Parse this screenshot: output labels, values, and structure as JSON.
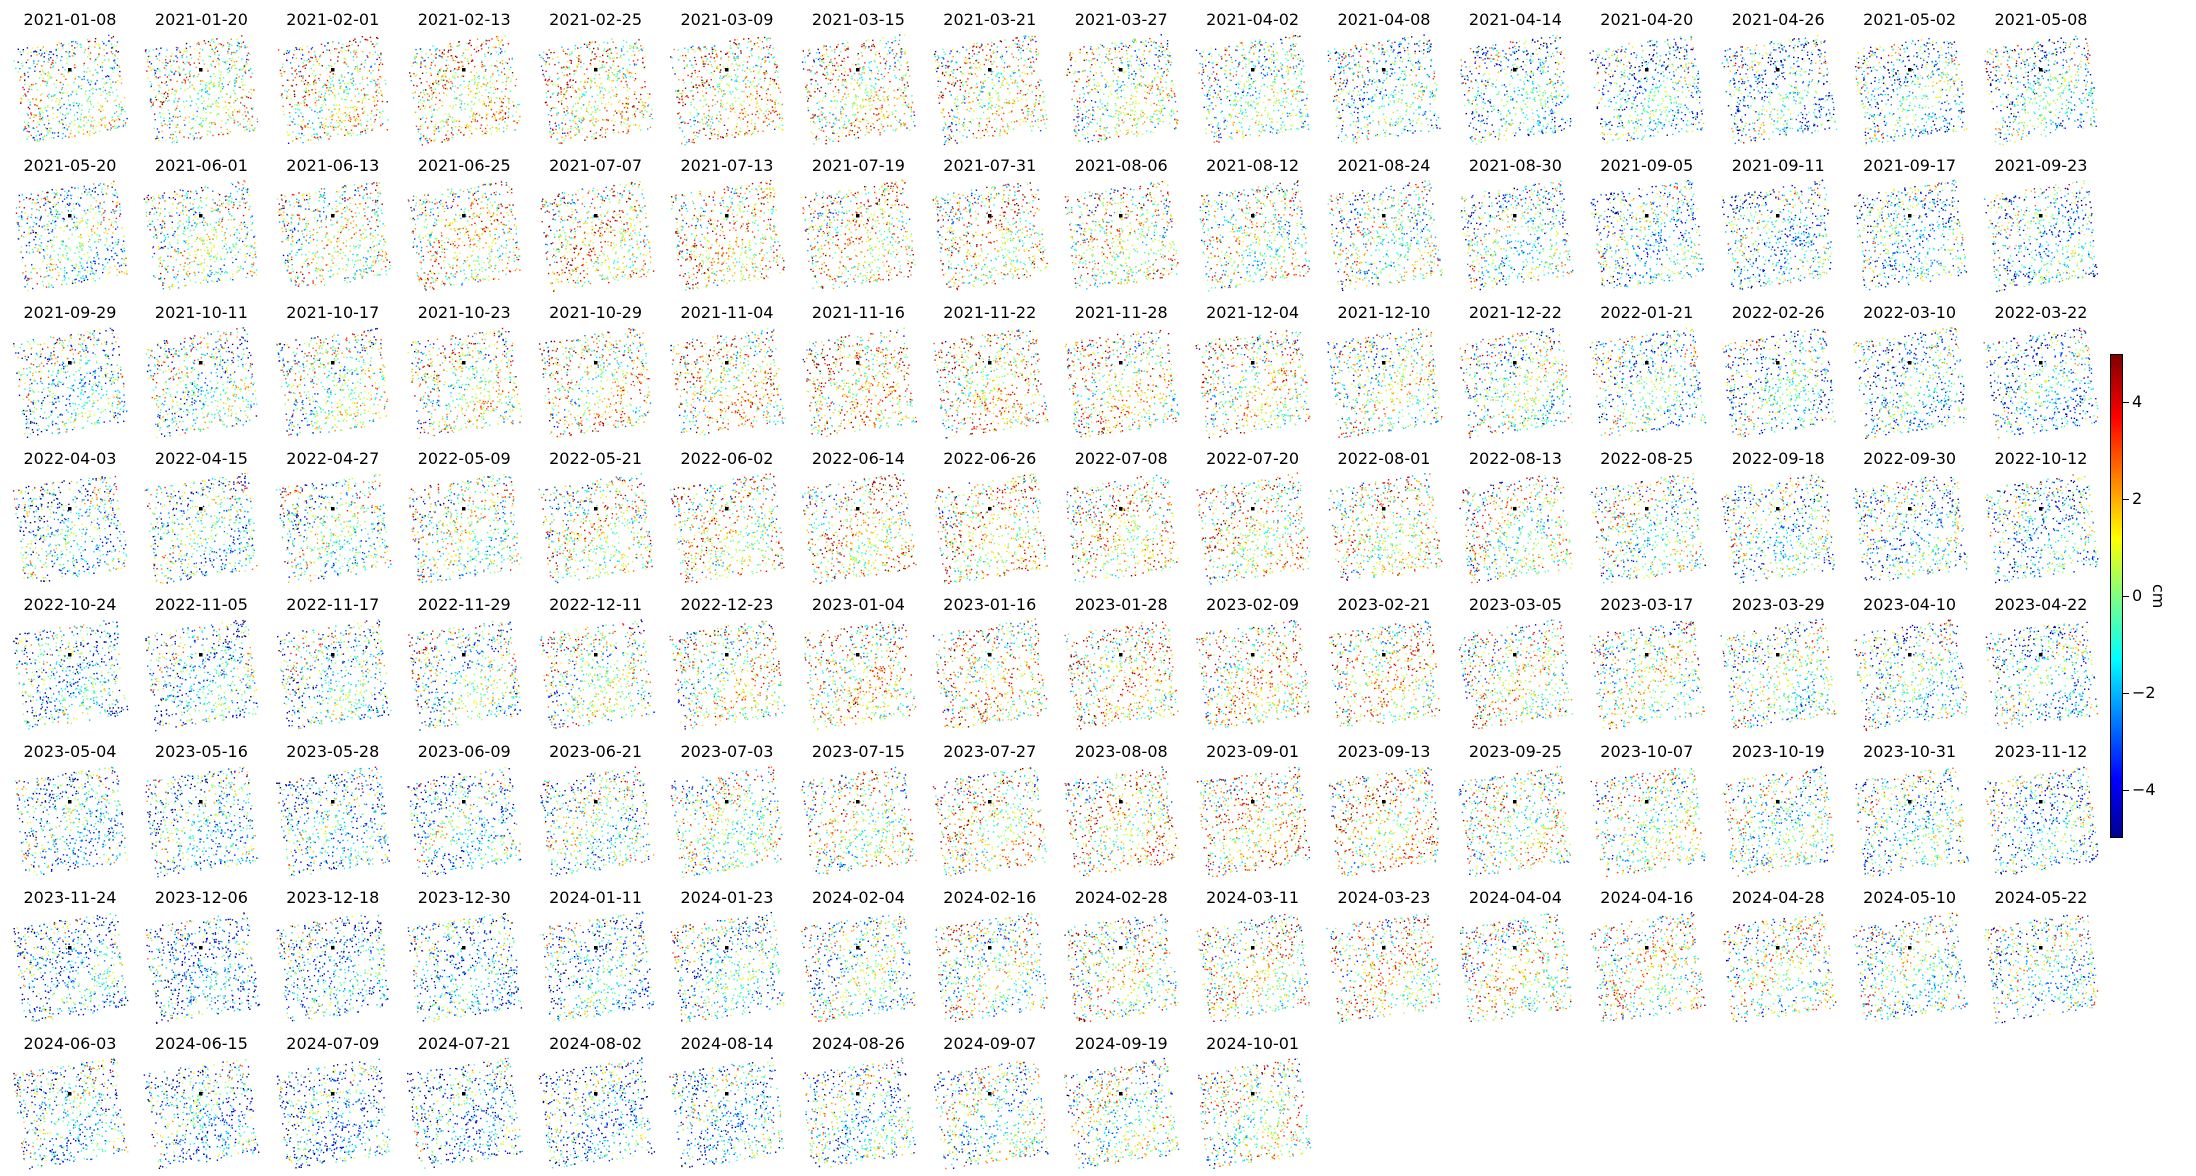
{
  "chart_data": {
    "type": "scatter",
    "description_of_layout": "small-multiples grid of point-displacement maps, one per acquisition date",
    "panels": [
      "2021-01-08",
      "2021-01-20",
      "2021-02-01",
      "2021-02-13",
      "2021-02-25",
      "2021-03-09",
      "2021-03-15",
      "2021-03-21",
      "2021-03-27",
      "2021-04-02",
      "2021-04-08",
      "2021-04-14",
      "2021-04-20",
      "2021-04-26",
      "2021-05-02",
      "2021-05-08",
      "2021-05-20",
      "2021-06-01",
      "2021-06-13",
      "2021-06-25",
      "2021-07-07",
      "2021-07-13",
      "2021-07-19",
      "2021-07-31",
      "2021-08-06",
      "2021-08-12",
      "2021-08-24",
      "2021-08-30",
      "2021-09-05",
      "2021-09-11",
      "2021-09-17",
      "2021-09-23",
      "2021-09-29",
      "2021-10-11",
      "2021-10-17",
      "2021-10-23",
      "2021-10-29",
      "2021-11-04",
      "2021-11-16",
      "2021-11-22",
      "2021-11-28",
      "2021-12-04",
      "2021-12-10",
      "2021-12-22",
      "2022-01-21",
      "2022-02-26",
      "2022-03-10",
      "2022-03-22",
      "2022-04-03",
      "2022-04-15",
      "2022-04-27",
      "2022-05-09",
      "2022-05-21",
      "2022-06-02",
      "2022-06-14",
      "2022-06-26",
      "2022-07-08",
      "2022-07-20",
      "2022-08-01",
      "2022-08-13",
      "2022-08-25",
      "2022-09-18",
      "2022-09-30",
      "2022-10-12",
      "2022-10-24",
      "2022-11-05",
      "2022-11-17",
      "2022-11-29",
      "2022-12-11",
      "2022-12-23",
      "2023-01-04",
      "2023-01-16",
      "2023-01-28",
      "2023-02-09",
      "2023-02-21",
      "2023-03-05",
      "2023-03-17",
      "2023-03-29",
      "2023-04-10",
      "2023-04-22",
      "2023-05-04",
      "2023-05-16",
      "2023-05-28",
      "2023-06-09",
      "2023-06-21",
      "2023-07-03",
      "2023-07-15",
      "2023-07-27",
      "2023-08-08",
      "2023-09-01",
      "2023-09-13",
      "2023-09-25",
      "2023-10-07",
      "2023-10-19",
      "2023-10-31",
      "2023-11-12",
      "2023-11-24",
      "2023-12-06",
      "2023-12-18",
      "2023-12-30",
      "2024-01-11",
      "2024-01-23",
      "2024-02-04",
      "2024-02-16",
      "2024-02-28",
      "2024-03-11",
      "2024-03-23",
      "2024-04-04",
      "2024-04-16",
      "2024-04-28",
      "2024-05-10",
      "2024-05-22",
      "2024-06-03",
      "2024-06-15",
      "2024-07-09",
      "2024-07-21",
      "2024-08-02",
      "2024-08-14",
      "2024-08-26",
      "2024-09-07",
      "2024-09-19",
      "2024-10-01"
    ],
    "colorbar": {
      "label": "cm",
      "range": [
        -5,
        5
      ],
      "ticks": [
        4,
        2,
        0,
        -2,
        -4
      ],
      "tick_labels": [
        "4",
        "2",
        "0",
        "−2",
        "−4"
      ],
      "colormap": "jet"
    },
    "axes_visible": false,
    "reference_point_color": "#000000"
  }
}
